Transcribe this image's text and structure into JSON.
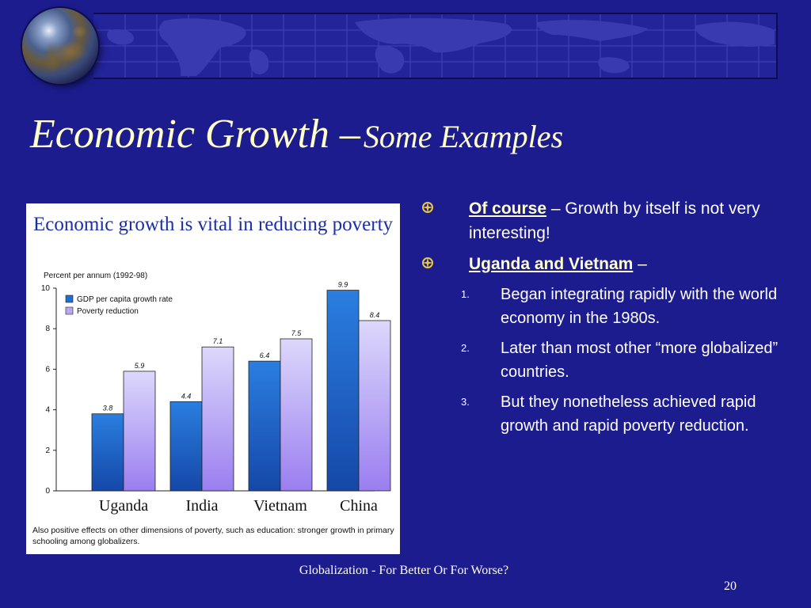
{
  "slide": {
    "title_main": "Economic Growth –",
    "title_sub": "Some Examples",
    "footer": "Globalization - For Better Or For Worse?",
    "page_number": "20"
  },
  "bullets": [
    {
      "highlight": "Of course",
      "text": " – Growth by itself is not very interesting!"
    },
    {
      "highlight": "Uganda and Vietnam",
      "text": " –"
    }
  ],
  "numbered": [
    {
      "num": "1.",
      "text": "Began integrating rapidly with the world economy in the 1980s."
    },
    {
      "num": "2.",
      "text": "Later than most other “more globalized” countries."
    },
    {
      "num": "3.",
      "text": "But they nonetheless achieved rapid growth and rapid poverty reduction."
    }
  ],
  "colors": {
    "background": "#1c1c8e",
    "title": "#ffffcc",
    "chart_title": "#1a2ea8",
    "series_gdp": "#1f6fd0",
    "series_poverty": "#b8a8f0"
  },
  "icons": {
    "bullet": "compass-star-icon",
    "banner": "globe-icon"
  },
  "chart_data": {
    "type": "bar",
    "title": "Economic growth is vital in reducing poverty",
    "subtitle": "Percent per annum (1992-98)",
    "categories": [
      "Uganda",
      "India",
      "Vietnam",
      "China"
    ],
    "series": [
      {
        "name": "GDP per capita growth rate",
        "values": [
          3.8,
          4.4,
          6.4,
          9.9
        ],
        "labels": [
          "3.8",
          "4.4",
          "6.4",
          "9.9"
        ]
      },
      {
        "name": "Poverty reduction",
        "values": [
          5.9,
          7.1,
          7.5,
          8.4
        ],
        "labels": [
          "5.9",
          "7.1",
          "7.5",
          "8.4"
        ]
      }
    ],
    "ylim": [
      0,
      10
    ],
    "yticks": [
      "0",
      "2",
      "4",
      "6",
      "8",
      "10"
    ],
    "legend": "top-left",
    "grid": false,
    "footnote": "Also positive effects on other dimensions of poverty, such as education: stronger growth in primary schooling among globalizers."
  }
}
